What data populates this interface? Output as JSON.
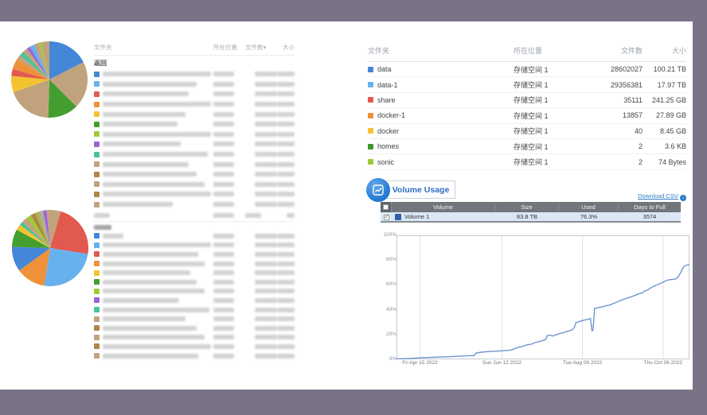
{
  "frame": {
    "color": "#7a7287",
    "content_bg": "#ffffff"
  },
  "left_top_table": {
    "headers": {
      "folder": "文件夹",
      "location": "所在位置",
      "count": "文件数",
      "sort_icon": "▾",
      "size": "大小"
    },
    "back_label": "返回",
    "rows": [
      {
        "color": "#4486d8",
        "nw": 148
      },
      {
        "color": "#68b1ef",
        "nw": 118
      },
      {
        "color": "#e2594f",
        "nw": 108
      },
      {
        "color": "#ef9138",
        "nw": 158
      },
      {
        "color": "#f3c231",
        "nw": 104
      },
      {
        "color": "#449e2f",
        "nw": 94
      },
      {
        "color": "#9ecb35",
        "nw": 138
      },
      {
        "color": "#9a64d8",
        "nw": 98
      },
      {
        "color": "#45c498",
        "nw": 132
      },
      {
        "color": "#c0a37d",
        "nw": 108
      },
      {
        "color": "#b08448",
        "nw": 118
      },
      {
        "color": "#c0a37d",
        "nw": 128
      },
      {
        "color": "#b08448",
        "nw": 138
      },
      {
        "color": "#c0a37d",
        "nw": 88
      }
    ]
  },
  "left_bottom_table": {
    "header_bar_widths": [
      20,
      26,
      20,
      10
    ],
    "back_bar_width": 22,
    "rows": [
      {
        "color": "#4486d8",
        "nw": 26
      },
      {
        "color": "#68b1ef",
        "nw": 150
      },
      {
        "color": "#e2594f",
        "nw": 120
      },
      {
        "color": "#ef9138",
        "nw": 128
      },
      {
        "color": "#f3c231",
        "nw": 110
      },
      {
        "color": "#449e2f",
        "nw": 118
      },
      {
        "color": "#9ecb35",
        "nw": 128
      },
      {
        "color": "#9a64d8",
        "nw": 96
      },
      {
        "color": "#45c498",
        "nw": 134
      },
      {
        "color": "#c0a37d",
        "nw": 104
      },
      {
        "color": "#b08448",
        "nw": 118
      },
      {
        "color": "#c0a37d",
        "nw": 128
      },
      {
        "color": "#b08448",
        "nw": 150
      },
      {
        "color": "#c0a37d",
        "nw": 120
      }
    ]
  },
  "right_table": {
    "headers": {
      "folder": "文件夹",
      "location": "所在位置",
      "count": "文件数",
      "size": "大小"
    },
    "rows": [
      {
        "color": "#4486d8",
        "name": "data",
        "location": "存储空间 1",
        "count": "28602027",
        "size": "100.21 TB"
      },
      {
        "color": "#68b1ef",
        "name": "data-1",
        "location": "存储空间 1",
        "count": "29356381",
        "size": "17.97 TB"
      },
      {
        "color": "#e2594f",
        "name": "share",
        "location": "存储空间 1",
        "count": "35111",
        "size": "241.25 GB"
      },
      {
        "color": "#ef9138",
        "name": "docker-1",
        "location": "存储空间 1",
        "count": "13857",
        "size": "27.89 GB"
      },
      {
        "color": "#f3c231",
        "name": "docker",
        "location": "存储空间 1",
        "count": "40",
        "size": "8.45 GB"
      },
      {
        "color": "#3c9a28",
        "name": "homes",
        "location": "存储空间 1",
        "count": "2",
        "size": "3.6 KB"
      },
      {
        "color": "#9ecb35",
        "name": "sonic",
        "location": "存储空间 1",
        "count": "2",
        "size": "74 Bytes"
      }
    ]
  },
  "volume_usage": {
    "title": "Volume Usage",
    "download_csv": "Download CSV",
    "headers": [
      "Volume",
      "Size",
      "Used",
      "Days to Full"
    ],
    "rows": [
      {
        "checked": true,
        "color": "#2e5fa3",
        "name": "Volume 1",
        "size": "83.8 TB",
        "used": "76.3%",
        "days_to_full": "3574"
      }
    ]
  },
  "chart_data": [
    {
      "type": "pie",
      "id": "pie_top",
      "title": "top folder size distribution",
      "slices": [
        {
          "color": "#4486d8",
          "value": 17.5
        },
        {
          "color": "#c0a37d",
          "value": 20
        },
        {
          "color": "#449e2f",
          "value": 13
        },
        {
          "color": "#c0a37d",
          "value": 19
        },
        {
          "color": "#f3c231",
          "value": 7
        },
        {
          "color": "#e2594f",
          "value": 3
        },
        {
          "color": "#ef9138",
          "value": 4.5
        },
        {
          "color": "#c0a37d",
          "value": 2
        },
        {
          "color": "#45c498",
          "value": 2
        },
        {
          "color": "#c0a37d",
          "value": 2
        },
        {
          "color": "#9a64d8",
          "value": 1.5
        },
        {
          "color": "#68b1ef",
          "value": 2
        },
        {
          "color": "#c0a37d",
          "value": 2
        },
        {
          "color": "#9ecb35",
          "value": 1
        },
        {
          "color": "#c0a37d",
          "value": 3.5
        }
      ]
    },
    {
      "type": "pie",
      "id": "pie_bottom",
      "title": "bottom folder size distribution",
      "slices": [
        {
          "color": "#c0a37d",
          "value": 4.5
        },
        {
          "color": "#e2594f",
          "value": 23
        },
        {
          "color": "#68b1ef",
          "value": 25
        },
        {
          "color": "#ef9138",
          "value": 12.5
        },
        {
          "color": "#4486d8",
          "value": 10.5
        },
        {
          "color": "#449e2f",
          "value": 7.5
        },
        {
          "color": "#f3c231",
          "value": 2.5
        },
        {
          "color": "#45c498",
          "value": 1.5
        },
        {
          "color": "#c0a37d",
          "value": 2.5
        },
        {
          "color": "#9ecb35",
          "value": 2
        },
        {
          "color": "#b08448",
          "value": 2
        },
        {
          "color": "#a8b53e",
          "value": 1.5
        },
        {
          "color": "#b3ab9b",
          "value": 2
        },
        {
          "color": "#9a64d8",
          "value": 1.5
        },
        {
          "color": "#c0a37d",
          "value": 1.5
        }
      ]
    },
    {
      "type": "line",
      "id": "usage_line",
      "title": "Volume 1 usage over time",
      "ylim": [
        0,
        100
      ],
      "grid": "vertical-only",
      "line_color": "#7195cf",
      "y_ticks": [
        "100%",
        "80%",
        "60%",
        "40%",
        "20%",
        "0%"
      ],
      "x_ticks": [
        {
          "label": "Fri Apr 15 2022",
          "f": 0.08
        },
        {
          "label": "Sun Jun 12 2022",
          "f": 0.36
        },
        {
          "label": "Tue Aug 09 2022",
          "f": 0.635
        },
        {
          "label": "Thu Oct 06 2022",
          "f": 0.91
        }
      ],
      "series": [
        {
          "name": "Volume 1",
          "points": [
            [
              0,
              0.4
            ],
            [
              0.04,
              0.7
            ],
            [
              0.08,
              1.2
            ],
            [
              0.12,
              1.6
            ],
            [
              0.16,
              2.0
            ],
            [
              0.2,
              2.4
            ],
            [
              0.24,
              2.8
            ],
            [
              0.265,
              3.1
            ],
            [
              0.272,
              5.2
            ],
            [
              0.29,
              5.8
            ],
            [
              0.31,
              6.2
            ],
            [
              0.33,
              6.5
            ],
            [
              0.36,
              6.9
            ],
            [
              0.385,
              7.3
            ],
            [
              0.4,
              8.2
            ],
            [
              0.415,
              9.7
            ],
            [
              0.43,
              10.4
            ],
            [
              0.445,
              11.7
            ],
            [
              0.46,
              12.2
            ],
            [
              0.472,
              13.5
            ],
            [
              0.487,
              14.3
            ],
            [
              0.5,
              15.2
            ],
            [
              0.51,
              16.2
            ],
            [
              0.515,
              19.2
            ],
            [
              0.525,
              19.6
            ],
            [
              0.532,
              18.8
            ],
            [
              0.545,
              19.8
            ],
            [
              0.558,
              20.8
            ],
            [
              0.572,
              21.8
            ],
            [
              0.586,
              22.8
            ],
            [
              0.6,
              23.8
            ],
            [
              0.607,
              25.8
            ],
            [
              0.612,
              29.4
            ],
            [
              0.625,
              30.6
            ],
            [
              0.64,
              31.6
            ],
            [
              0.655,
              32.4
            ],
            [
              0.662,
              33.0
            ],
            [
              0.667,
              23.0
            ],
            [
              0.671,
              23.6
            ],
            [
              0.676,
              41.0
            ],
            [
              0.69,
              41.8
            ],
            [
              0.702,
              42.3
            ],
            [
              0.715,
              43.2
            ],
            [
              0.728,
              43.8
            ],
            [
              0.738,
              44.8
            ],
            [
              0.753,
              46.2
            ],
            [
              0.768,
              47.8
            ],
            [
              0.783,
              49.0
            ],
            [
              0.798,
              50.2
            ],
            [
              0.813,
              51.5
            ],
            [
              0.827,
              52.8
            ],
            [
              0.838,
              53.5
            ],
            [
              0.848,
              55.2
            ],
            [
              0.858,
              56.0
            ],
            [
              0.872,
              58.2
            ],
            [
              0.883,
              59.5
            ],
            [
              0.893,
              60.5
            ],
            [
              0.904,
              61.5
            ],
            [
              0.914,
              62.8
            ],
            [
              0.924,
              63.8
            ],
            [
              0.934,
              64.3
            ],
            [
              0.944,
              64.5
            ],
            [
              0.954,
              64.8
            ],
            [
              0.961,
              66.5
            ],
            [
              0.969,
              69.5
            ],
            [
              0.977,
              73.5
            ],
            [
              0.984,
              75.5
            ],
            [
              1.0,
              76.5
            ]
          ]
        }
      ]
    }
  ]
}
